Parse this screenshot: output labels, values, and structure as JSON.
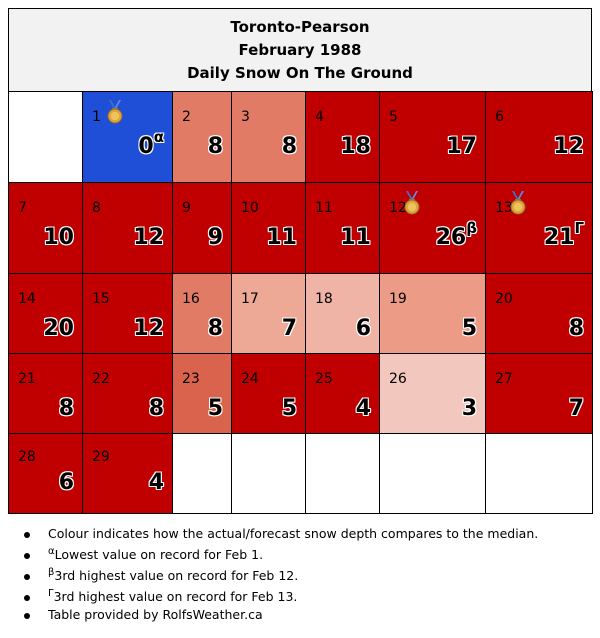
{
  "header": {
    "station": "Toronto-Pearson",
    "month": "February 1988",
    "metric": "Daily Snow On The Ground"
  },
  "colors": {
    "empty": "#ffffff",
    "record_low": "#1f4fd6",
    "much_above": "#c00000",
    "above_1": "#e0705a",
    "above_2": "#e68672",
    "above_3": "#eb9c88",
    "above_4": "#efae9e",
    "above_5": "#f2c6bc"
  },
  "chart_data": {
    "type": "table",
    "title": "Daily Snow On The Ground",
    "subtitle": "February 1988",
    "station": "Toronto-Pearson",
    "first_weekday_offset": 1,
    "days": [
      {
        "day": "1",
        "value": 0,
        "note": "α",
        "medal": true,
        "color": "#1f4fd6"
      },
      {
        "day": "2",
        "value": 8,
        "note": "",
        "medal": false,
        "color": "#e27b66"
      },
      {
        "day": "3",
        "value": 8,
        "note": "",
        "medal": false,
        "color": "#e27b66"
      },
      {
        "day": "4",
        "value": 18,
        "note": "",
        "medal": false,
        "color": "#c00000"
      },
      {
        "day": "5",
        "value": 17,
        "note": "",
        "medal": false,
        "color": "#c00000"
      },
      {
        "day": "6",
        "value": 12,
        "note": "",
        "medal": false,
        "color": "#c00000"
      },
      {
        "day": "7",
        "value": 10,
        "note": "",
        "medal": false,
        "color": "#c00000"
      },
      {
        "day": "8",
        "value": 12,
        "note": "",
        "medal": false,
        "color": "#c00000"
      },
      {
        "day": "9",
        "value": 9,
        "note": "",
        "medal": false,
        "color": "#c00000"
      },
      {
        "day": "10",
        "value": 11,
        "note": "",
        "medal": false,
        "color": "#c00000"
      },
      {
        "day": "11",
        "value": 11,
        "note": "",
        "medal": false,
        "color": "#c00000"
      },
      {
        "day": "12",
        "value": 26,
        "note": "β",
        "medal": true,
        "color": "#c00000"
      },
      {
        "day": "13",
        "value": 21,
        "note": "Γ",
        "medal": true,
        "color": "#c00000"
      },
      {
        "day": "14",
        "value": 20,
        "note": "",
        "medal": false,
        "color": "#c00000"
      },
      {
        "day": "15",
        "value": 12,
        "note": "",
        "medal": false,
        "color": "#c00000"
      },
      {
        "day": "16",
        "value": 8,
        "note": "",
        "medal": false,
        "color": "#e27b66"
      },
      {
        "day": "17",
        "value": 7,
        "note": "",
        "medal": false,
        "color": "#eda896"
      },
      {
        "day": "18",
        "value": 6,
        "note": "",
        "medal": false,
        "color": "#efb4a6"
      },
      {
        "day": "19",
        "value": 5,
        "note": "",
        "medal": false,
        "color": "#eb9b86"
      },
      {
        "day": "20",
        "value": 8,
        "note": "",
        "medal": false,
        "color": "#c00000"
      },
      {
        "day": "21",
        "value": 8,
        "note": "",
        "medal": false,
        "color": "#c00000"
      },
      {
        "day": "22",
        "value": 8,
        "note": "",
        "medal": false,
        "color": "#c00000"
      },
      {
        "day": "23",
        "value": 5,
        "note": "",
        "medal": false,
        "color": "#d9634c"
      },
      {
        "day": "24",
        "value": 5,
        "note": "",
        "medal": false,
        "color": "#c00000"
      },
      {
        "day": "25",
        "value": 4,
        "note": "",
        "medal": false,
        "color": "#c00000"
      },
      {
        "day": "26",
        "value": 3,
        "note": "",
        "medal": false,
        "color": "#f2c8be"
      },
      {
        "day": "27",
        "value": 7,
        "note": "",
        "medal": false,
        "color": "#c00000"
      },
      {
        "day": "28",
        "value": 6,
        "note": "",
        "medal": false,
        "color": "#c00000"
      },
      {
        "day": "29",
        "value": 4,
        "note": "",
        "medal": false,
        "color": "#c00000"
      }
    ]
  },
  "notes": [
    {
      "sup": "",
      "text": "Colour indicates how the actual/forecast snow depth compares to the median."
    },
    {
      "sup": "α",
      "text": "Lowest value on record for Feb 1."
    },
    {
      "sup": "β",
      "text": "3rd highest value on record for Feb 12."
    },
    {
      "sup": "Γ",
      "text": "3rd highest value on record for Feb 13."
    },
    {
      "sup": "",
      "text": "Table provided by RolfsWeather.ca"
    }
  ]
}
